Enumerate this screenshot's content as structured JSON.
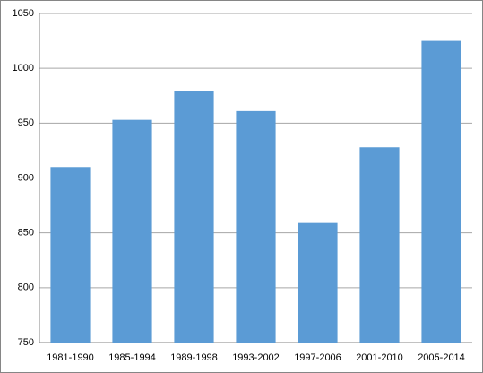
{
  "chart_data": {
    "type": "bar",
    "categories": [
      "1981-1990",
      "1985-1994",
      "1989-1998",
      "1993-2002",
      "1997-2006",
      "2001-2010",
      "2005-2014"
    ],
    "values": [
      910,
      953,
      979,
      961,
      859,
      928,
      1025
    ],
    "color": "#5b9bd5",
    "ylim": [
      750,
      1050
    ],
    "yticks": [
      750,
      800,
      850,
      900,
      950,
      1000,
      1050
    ],
    "grid": true
  }
}
